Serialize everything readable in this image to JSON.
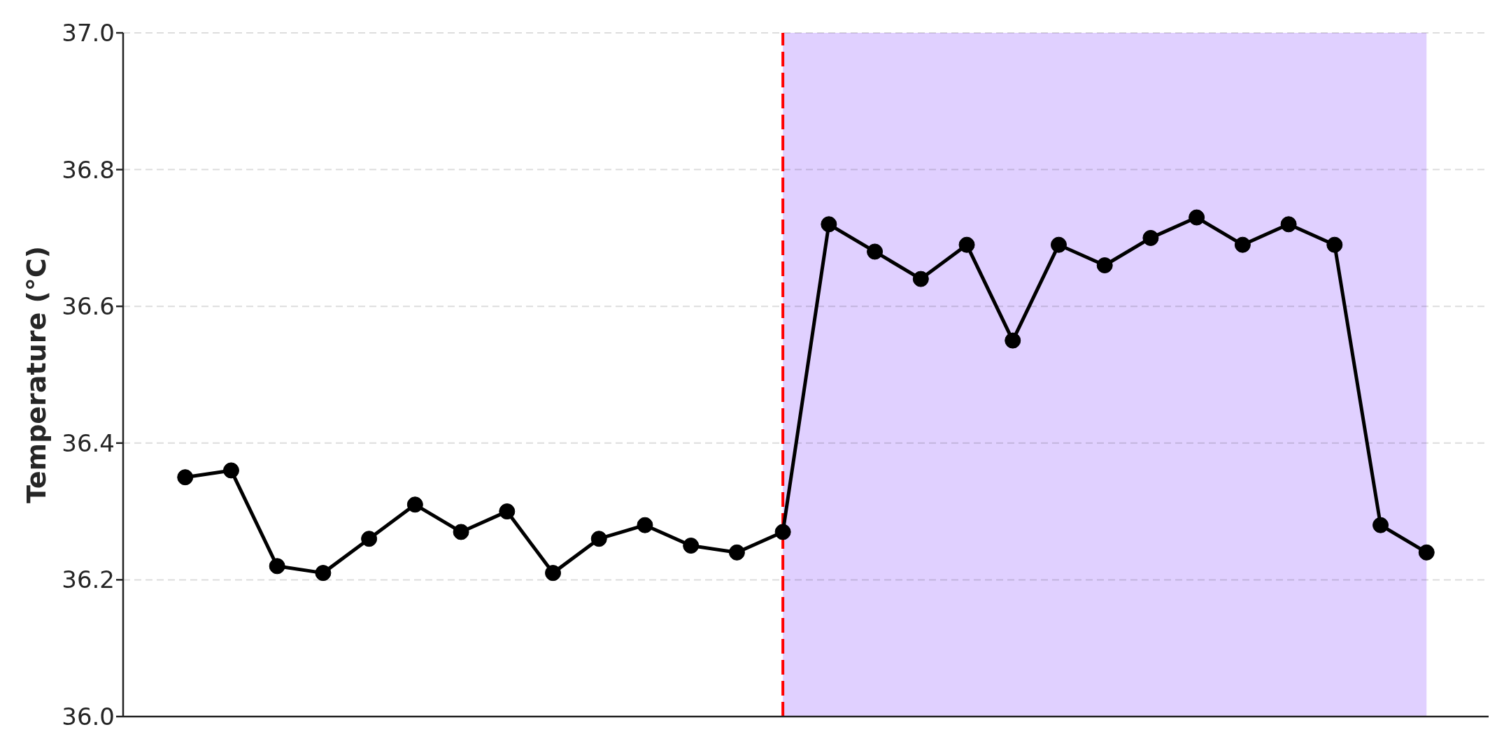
{
  "chart_data": {
    "type": "line",
    "ylabel": "Temperature (°C)",
    "categories": [
      null,
      null,
      null,
      null,
      null,
      null,
      null,
      null,
      null,
      null,
      null,
      null,
      null,
      null,
      null,
      null,
      null,
      null,
      null,
      null,
      null,
      null,
      null,
      null,
      null,
      null,
      null,
      null
    ],
    "values": [
      36.35,
      36.36,
      36.22,
      36.21,
      36.26,
      36.31,
      36.27,
      36.3,
      36.21,
      36.26,
      36.28,
      36.25,
      36.24,
      36.27,
      36.72,
      36.68,
      36.64,
      36.69,
      36.55,
      36.69,
      36.66,
      36.7,
      36.73,
      36.69,
      36.72,
      36.69,
      36.28,
      36.24
    ],
    "color": "#000000",
    "marker": "circle",
    "line_style": "solid",
    "ylim": [
      36.0,
      37.0
    ],
    "yticks": [
      {
        "value": 36.0,
        "label": "36.0"
      },
      36.2,
      36.4,
      36.6,
      36.8,
      {
        "value": 37.0,
        "label": "37.0"
      }
    ],
    "grid": "y",
    "tick_labels": "y"
  }
}
